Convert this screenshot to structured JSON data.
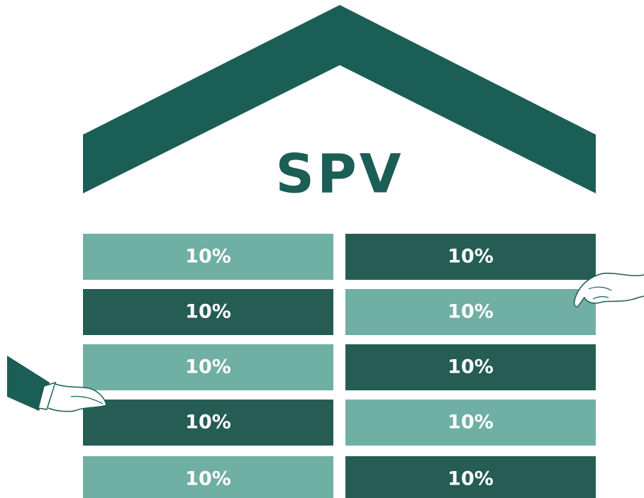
{
  "title": "SPV",
  "blocks": [
    [
      "10%",
      "10%"
    ],
    [
      "10%",
      "10%"
    ],
    [
      "10%",
      "10%"
    ],
    [
      "10%",
      "10%"
    ],
    [
      "10%",
      "10%"
    ]
  ]
}
